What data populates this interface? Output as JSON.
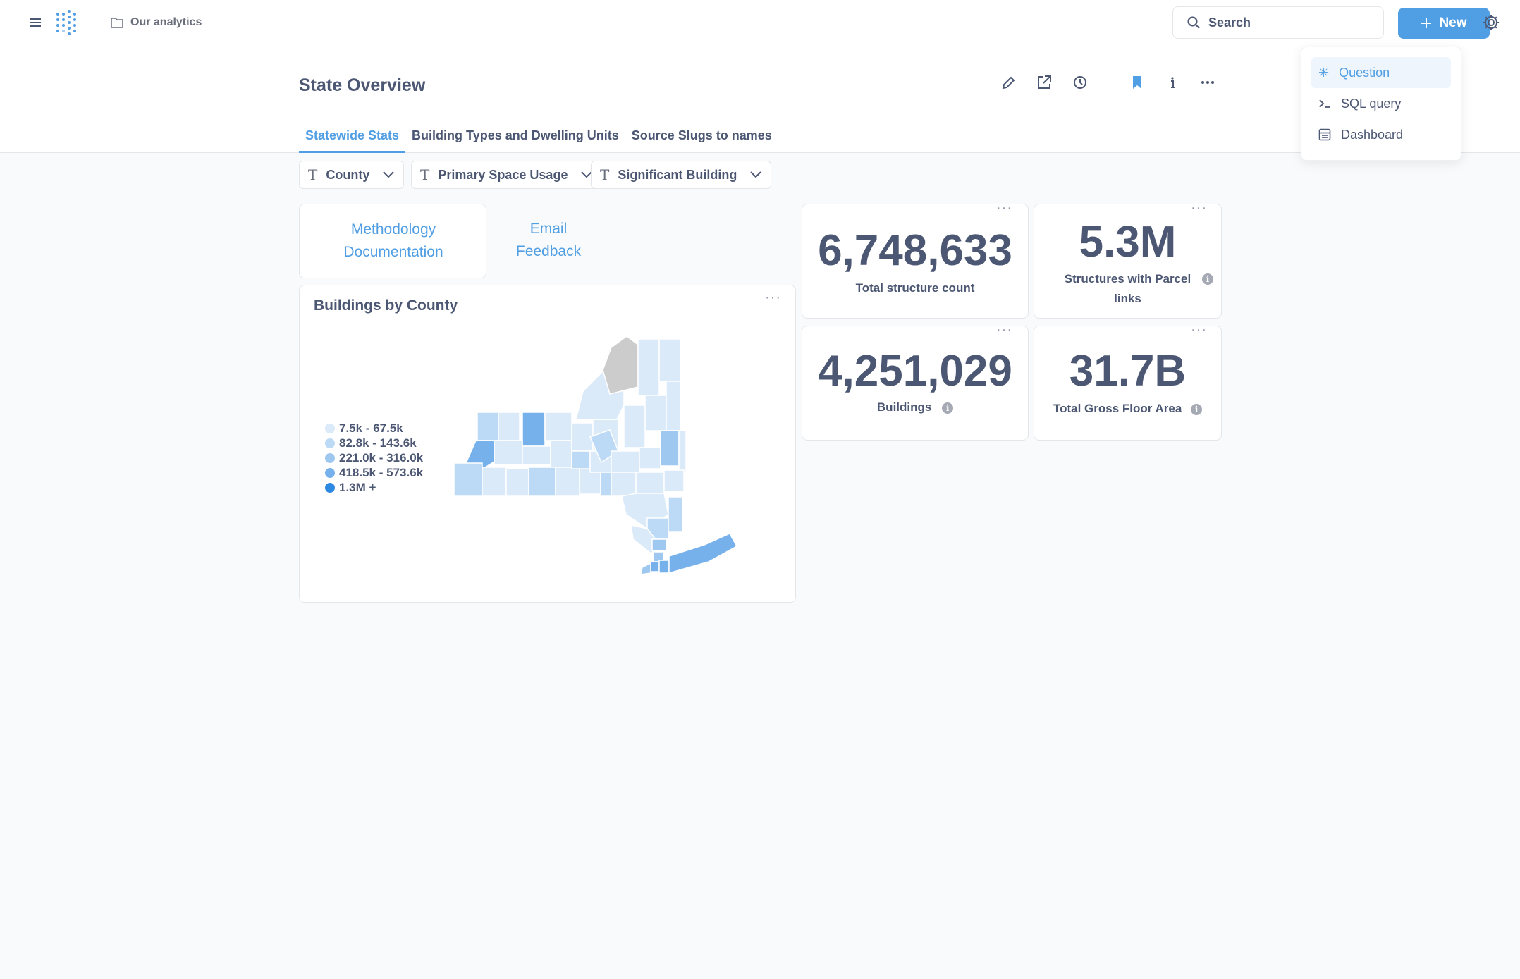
{
  "nav": {
    "breadcrumb": "Our analytics",
    "search_placeholder": "Search",
    "new_label": "New"
  },
  "new_menu": {
    "items": [
      {
        "label": "Question",
        "icon": "sparkle-icon"
      },
      {
        "label": "SQL query",
        "icon": "terminal-icon"
      },
      {
        "label": "Dashboard",
        "icon": "dashboard-icon"
      }
    ]
  },
  "dashboard": {
    "title": "State Overview",
    "tabs": [
      {
        "label": "Statewide Stats",
        "active": true
      },
      {
        "label": "Building Types and Dwelling Units",
        "active": false
      },
      {
        "label": "Source Slugs to names",
        "active": false
      }
    ],
    "filters": [
      {
        "label": "County"
      },
      {
        "label": "Primary Space Usage"
      },
      {
        "label": "Significant Building"
      }
    ]
  },
  "links": {
    "methodology_line1": "Methodology",
    "methodology_line2": "Documentation",
    "email_line1": "Email",
    "email_line2": "Feedback"
  },
  "stats": {
    "total_structures": {
      "value": "6,748,633",
      "label": "Total structure count"
    },
    "parcel_links": {
      "value": "5.3M",
      "label_line1": "Structures with Parcel",
      "label_line2": "links"
    },
    "buildings": {
      "value": "4,251,029",
      "label": "Buildings"
    },
    "gross_floor_area": {
      "value": "31.7B",
      "label": "Total Gross Floor Area"
    }
  },
  "map_card": {
    "title": "Buildings by County",
    "legend": [
      {
        "label": "7.5k - 67.5k",
        "color": "#dbeaf9"
      },
      {
        "label": "82.8k - 143.6k",
        "color": "#bcd9f5"
      },
      {
        "label": "221.0k - 316.0k",
        "color": "#9fc8f0"
      },
      {
        "label": "418.5k - 573.6k",
        "color": "#76b1eb"
      },
      {
        "label": "1.3M +",
        "color": "#2c88e1"
      }
    ],
    "no_data_color": "#cccccc"
  },
  "colors": {
    "brand": "#509ee3",
    "text": "#4c5773",
    "background": "#f9fafb"
  }
}
